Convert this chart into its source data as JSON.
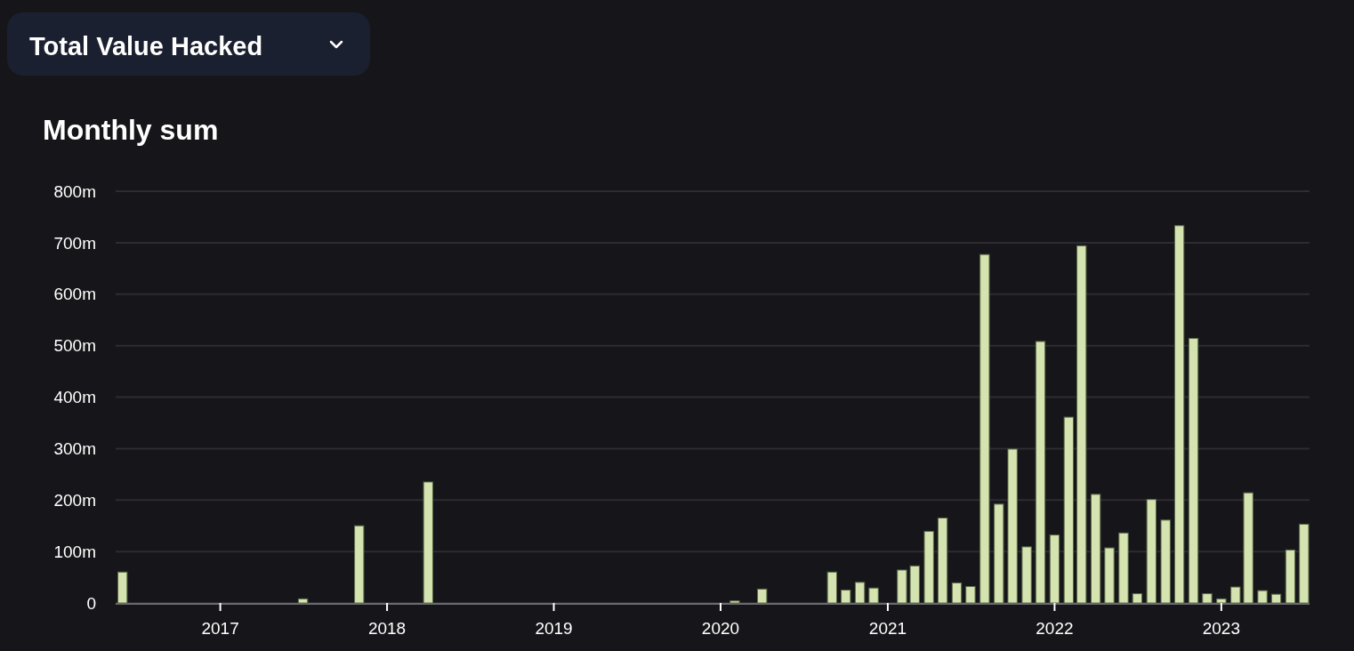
{
  "chart_data": {
    "type": "bar",
    "title": "Total Value Hacked",
    "subtitle": "Monthly sum",
    "x": [
      "2016-06",
      "2017-07",
      "2017-11",
      "2018-04",
      "2020-02",
      "2020-04",
      "2020-09",
      "2020-10",
      "2020-11",
      "2020-12",
      "2021-02",
      "2021-03",
      "2021-04",
      "2021-05",
      "2021-06",
      "2021-07",
      "2021-08",
      "2021-09",
      "2021-10",
      "2021-11",
      "2021-12",
      "2022-01",
      "2022-02",
      "2022-03",
      "2022-04",
      "2022-05",
      "2022-06",
      "2022-07",
      "2022-08",
      "2022-09",
      "2022-10",
      "2022-11",
      "2022-12",
      "2023-01",
      "2023-02",
      "2023-03",
      "2023-04",
      "2023-05",
      "2023-06",
      "2023-07"
    ],
    "values": [
      60,
      8,
      150,
      235,
      4,
      27,
      60,
      25,
      40,
      29,
      64,
      72,
      139,
      165,
      39,
      32,
      677,
      192,
      299,
      109,
      508,
      132,
      361,
      694,
      211,
      107,
      136,
      18,
      201,
      161,
      733,
      514,
      18,
      8,
      31,
      214,
      24,
      17,
      103,
      153
    ],
    "color": "#d5e3b0",
    "xlim": [
      "2016-05-17",
      "2023-07-13"
    ],
    "xticks": [
      "2017",
      "2018",
      "2019",
      "2020",
      "2021",
      "2022",
      "2023"
    ],
    "ylim": [
      0,
      800
    ],
    "yticks": [
      0,
      {
        "value": 100,
        "label": "100m"
      },
      {
        "value": 200,
        "label": "200m"
      },
      {
        "value": 300,
        "label": "300m"
      },
      {
        "value": 400,
        "label": "400m"
      },
      {
        "value": 500,
        "label": "500m"
      },
      {
        "value": 600,
        "label": "600m"
      },
      {
        "value": 700,
        "label": "700m"
      },
      {
        "value": 800,
        "label": "800m"
      }
    ],
    "grid": "y"
  }
}
